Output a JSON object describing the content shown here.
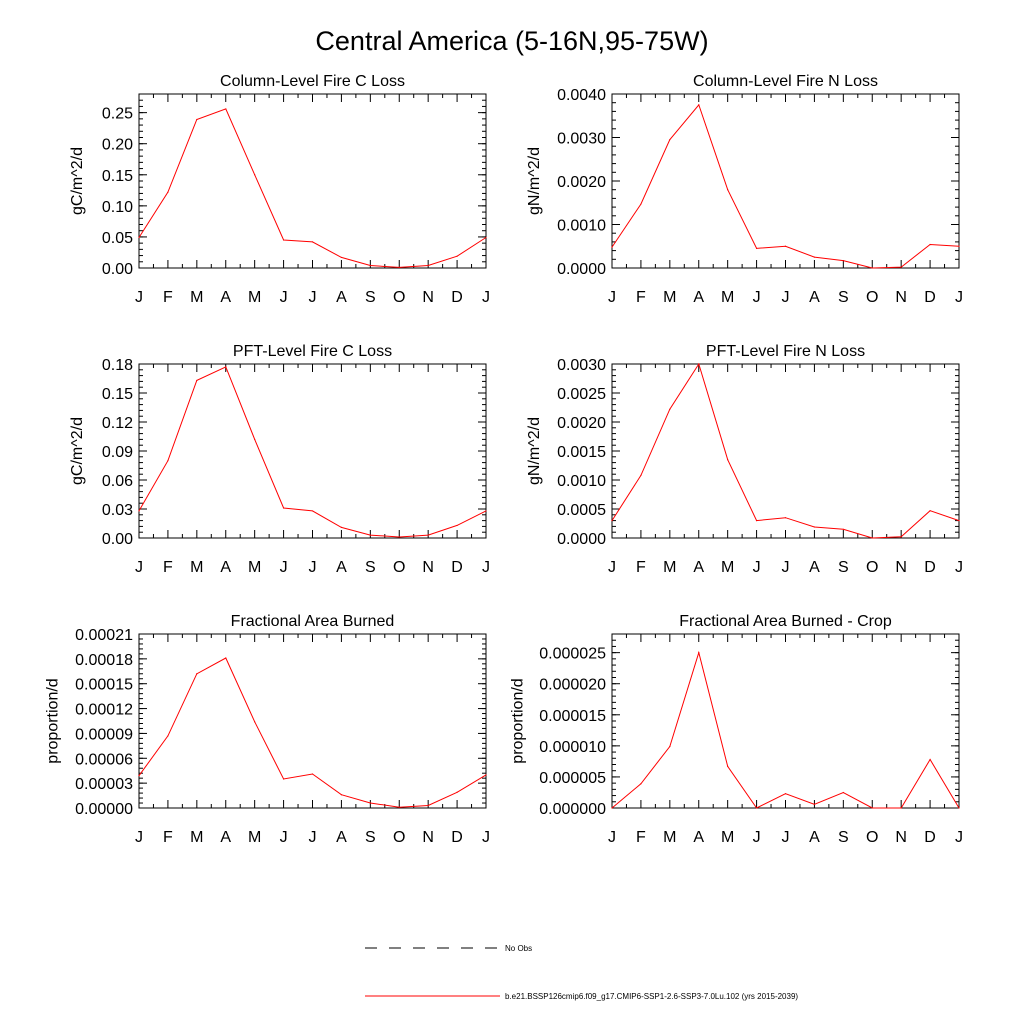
{
  "page": {
    "title": "Central America (5-16N,95-75W)"
  },
  "legend": {
    "obs_label": "No Obs",
    "model_label": "b.e21.BSSP126cmip6.f09_g17.CMIP6-SSP1-2.6-SSP3-7.0Lu.102 (yrs 2015-2039)",
    "model_color": "#ff0000",
    "obs_color": "#000000",
    "obs_style": "dashed"
  },
  "chart_data": [
    {
      "type": "line",
      "title": "Column-Level Fire C Loss",
      "ylabel": "gC/m^2/d",
      "categories": [
        "J",
        "F",
        "M",
        "A",
        "M",
        "J",
        "J",
        "A",
        "S",
        "O",
        "N",
        "D",
        "J"
      ],
      "ylim": [
        0,
        0.28
      ],
      "yticks": [
        "0.00",
        "0.05",
        "0.10",
        "0.15",
        "0.20",
        "0.25"
      ],
      "series": [
        {
          "values": [
            0.049,
            0.122,
            0.239,
            0.256,
            0.15,
            0.045,
            0.042,
            0.017,
            0.004,
            0.001,
            0.004,
            0.019,
            0.049
          ]
        }
      ]
    },
    {
      "type": "line",
      "title": "Column-Level Fire N Loss",
      "ylabel": "gN/m^2/d",
      "categories": [
        "J",
        "F",
        "M",
        "A",
        "M",
        "J",
        "J",
        "A",
        "S",
        "O",
        "N",
        "D",
        "J"
      ],
      "ylim": [
        0,
        0.004
      ],
      "yticks": [
        "0.0000",
        "0.0010",
        "0.0020",
        "0.0030",
        "0.0040"
      ],
      "series": [
        {
          "values": [
            0.00048,
            0.00147,
            0.00295,
            0.00375,
            0.0018,
            0.00045,
            0.0005,
            0.00025,
            0.00017,
            0.0,
            2e-05,
            0.00054,
            0.0005
          ]
        }
      ]
    },
    {
      "type": "line",
      "title": "PFT-Level Fire C Loss",
      "ylabel": "gC/m^2/d",
      "categories": [
        "J",
        "F",
        "M",
        "A",
        "M",
        "J",
        "J",
        "A",
        "S",
        "O",
        "N",
        "D",
        "J"
      ],
      "ylim": [
        0,
        0.18
      ],
      "yticks": [
        "0.00",
        "0.03",
        "0.06",
        "0.09",
        "0.12",
        "0.15",
        "0.18"
      ],
      "series": [
        {
          "values": [
            0.028,
            0.08,
            0.163,
            0.177,
            0.102,
            0.031,
            0.028,
            0.011,
            0.003,
            0.001,
            0.003,
            0.013,
            0.028
          ]
        }
      ]
    },
    {
      "type": "line",
      "title": "PFT-Level Fire N Loss",
      "ylabel": "gN/m^2/d",
      "categories": [
        "J",
        "F",
        "M",
        "A",
        "M",
        "J",
        "J",
        "A",
        "S",
        "O",
        "N",
        "D",
        "J"
      ],
      "ylim": [
        0,
        0.003
      ],
      "yticks": [
        "0.0000",
        "0.0005",
        "0.0010",
        "0.0015",
        "0.0020",
        "0.0025",
        "0.0030"
      ],
      "series": [
        {
          "values": [
            0.0003,
            0.00108,
            0.00222,
            0.003,
            0.00135,
            0.0003,
            0.00035,
            0.00019,
            0.00015,
            0.0,
            2e-05,
            0.00047,
            0.0003
          ]
        }
      ]
    },
    {
      "type": "line",
      "title": "Fractional Area Burned",
      "ylabel": "proportion/d",
      "categories": [
        "J",
        "F",
        "M",
        "A",
        "M",
        "J",
        "J",
        "A",
        "S",
        "O",
        "N",
        "D",
        "J"
      ],
      "ylim": [
        0,
        0.00021
      ],
      "yticks": [
        "0.00000",
        "0.00003",
        "0.00006",
        "0.00009",
        "0.00012",
        "0.00015",
        "0.00018",
        "0.00021"
      ],
      "series": [
        {
          "values": [
            3.9e-05,
            8.7e-05,
            0.000162,
            0.000181,
            0.000104,
            3.5e-05,
            4.1e-05,
            1.6e-05,
            6e-06,
            1e-06,
            3e-06,
            1.9e-05,
            4e-05
          ]
        }
      ]
    },
    {
      "type": "line",
      "title": "Fractional Area Burned - Crop",
      "ylabel": "proportion/d",
      "categories": [
        "J",
        "F",
        "M",
        "A",
        "M",
        "J",
        "J",
        "A",
        "S",
        "O",
        "N",
        "D",
        "J"
      ],
      "ylim": [
        0,
        2.8e-05
      ],
      "yticks": [
        "0.000000",
        "0.000005",
        "0.000010",
        "0.000015",
        "0.000020",
        "0.000025"
      ],
      "series": [
        {
          "values": [
            0.0,
            3.9e-06,
            9.9e-06,
            2.5e-05,
            6.7e-06,
            0.0,
            2.3e-06,
            6e-07,
            2.5e-06,
            0.0,
            0.0,
            7.8e-06,
            0.0
          ]
        }
      ]
    }
  ]
}
